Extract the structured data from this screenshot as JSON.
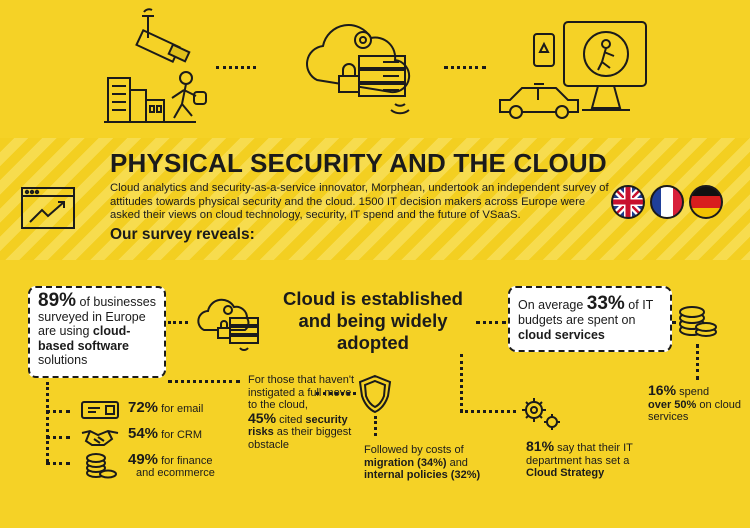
{
  "title": "PHYSICAL SECURITY AND THE CLOUD",
  "intro": "Cloud analytics and security-as-a-service innovator, Morphean, undertook an independent survey of attitudes towards physical security and the cloud. 1500 IT decision makers across Europe were asked their views on cloud technology, security, IT spend and the future of VSaaS.",
  "reveals": "Our survey reveals:",
  "flags": [
    "uk-flag",
    "france-flag",
    "germany-flag"
  ],
  "left_box": {
    "pct": "89%",
    "text1": " of businesses surveyed in Europe are using ",
    "bold": "cloud-based software",
    "text2": " solutions"
  },
  "uses": [
    {
      "pct": "72%",
      "label": " for email",
      "icon": "email-icon"
    },
    {
      "pct": "54%",
      "label": " for CRM",
      "icon": "handshake-icon"
    },
    {
      "pct": "49%",
      "label": " for finance",
      "label2": "and ecommerce",
      "icon": "coins-icon"
    }
  ],
  "center_heading": "Cloud is established and being widely adopted",
  "obstacle": {
    "lead": "For those that haven't instigated a full move to the cloud,",
    "pct": "45%",
    "text1": " cited ",
    "bold": "security risks",
    "text2": " as their biggest obstacle"
  },
  "costs": {
    "lead": "Followed by costs of",
    "b1": "migration (34%)",
    "mid": " and",
    "b2": "internal policies (32%)"
  },
  "right_box": {
    "lead": "On average ",
    "pct": "33%",
    "text1": " of IT budgets are spent on ",
    "bold": "cloud services"
  },
  "strategy": {
    "pct": "81%",
    "text1": " say that their IT department has set a ",
    "bold": "Cloud Strategy"
  },
  "spend": {
    "pct": "16%",
    "text1": " spend",
    "bold": "over 50%",
    "text2": " on cloud services"
  },
  "colors": {
    "background": "#f5d226",
    "ink": "#1b1b1b",
    "box": "#ffffff"
  }
}
